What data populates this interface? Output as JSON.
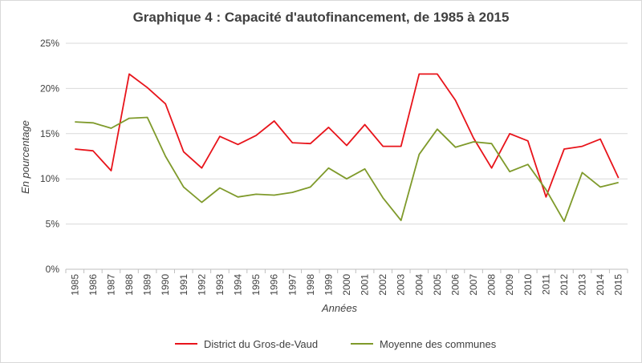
{
  "chart_data": {
    "type": "line",
    "title": "Graphique 4 : Capacité d'autofinancement, de 1985 à 2015",
    "xlabel": "Années",
    "ylabel": "En pourcentage",
    "ylim": [
      0,
      25
    ],
    "yticks": [
      "0%",
      "5%",
      "10%",
      "15%",
      "20%",
      "25%"
    ],
    "ytick_values": [
      0,
      5,
      10,
      15,
      20,
      25
    ],
    "grid": true,
    "legend_position": "bottom",
    "categories": [
      "1985",
      "1986",
      "1987",
      "1988",
      "1989",
      "1990",
      "1991",
      "1992",
      "1993",
      "1994",
      "1995",
      "1996",
      "1997",
      "1998",
      "1999",
      "2000",
      "2001",
      "2002",
      "2003",
      "2004",
      "2005",
      "2006",
      "2007",
      "2008",
      "2009",
      "2010",
      "2011",
      "2012",
      "2013",
      "2014",
      "2015"
    ],
    "series": [
      {
        "name": "District du Gros-de-Vaud",
        "color": "#e8141b",
        "values": [
          13.3,
          13.1,
          10.9,
          21.6,
          20.1,
          18.3,
          13.0,
          11.2,
          14.7,
          13.8,
          14.8,
          16.4,
          14.0,
          13.9,
          15.7,
          13.7,
          16.0,
          13.6,
          13.6,
          21.6,
          21.6,
          18.7,
          14.5,
          11.2,
          15.0,
          14.2,
          8.0,
          13.3,
          13.6,
          14.4,
          10.1
        ]
      },
      {
        "name": "Moyenne des communes",
        "color": "#7f9a2b",
        "values": [
          16.3,
          16.2,
          15.6,
          16.7,
          16.8,
          12.5,
          9.1,
          7.4,
          9.0,
          8.0,
          8.3,
          8.2,
          8.5,
          9.1,
          11.2,
          10.0,
          11.1,
          7.9,
          5.4,
          12.7,
          15.5,
          13.5,
          14.1,
          13.9,
          10.8,
          11.6,
          8.8,
          5.3,
          10.7,
          9.1,
          9.6
        ]
      }
    ]
  }
}
